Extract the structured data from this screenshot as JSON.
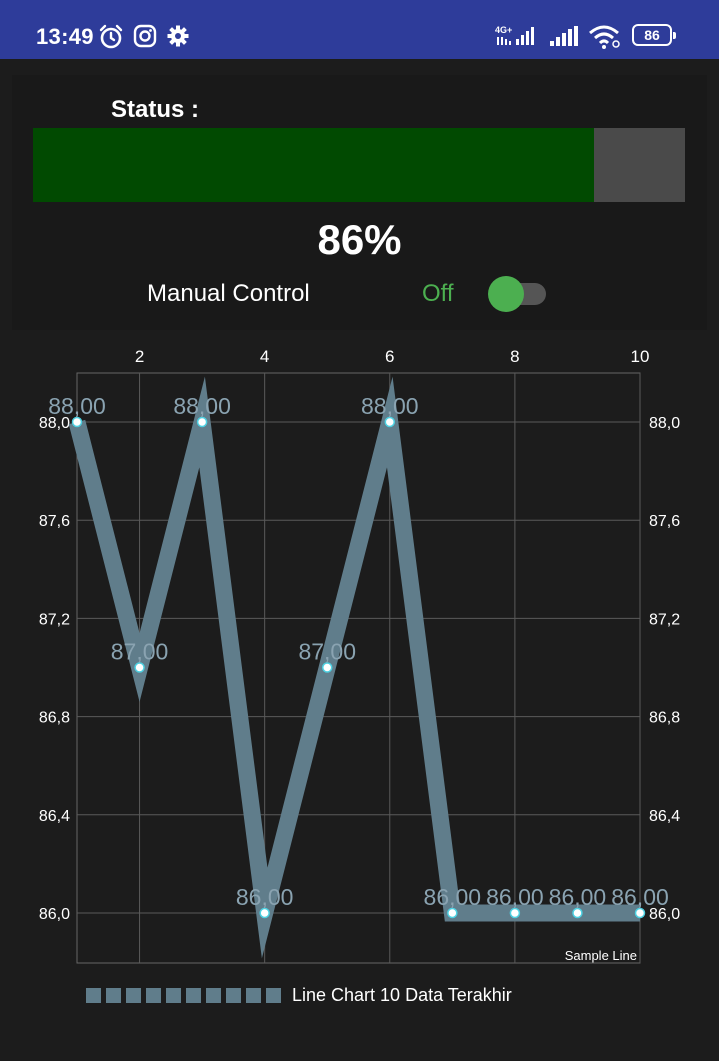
{
  "status_bar": {
    "time": "13:49",
    "battery": "86",
    "icons": [
      "alarm-icon",
      "instagram-icon",
      "gear-icon",
      "signal-4g-icon",
      "signal-icon",
      "wifi-icon",
      "battery-icon"
    ]
  },
  "status": {
    "label": "Status :",
    "progress": 86,
    "percent_text": "86%",
    "fill_color": "#014a01",
    "track_color": "#4a4a4a"
  },
  "manual_control": {
    "label": "Manual Control",
    "state": "Off",
    "checked": false,
    "accent": "#4caf50"
  },
  "chart_data": {
    "type": "line",
    "x": [
      1,
      2,
      3,
      4,
      5,
      6,
      7,
      8,
      9,
      10
    ],
    "series": [
      {
        "name": "Line Chart 10 Data Terakhir",
        "values": [
          88,
          87,
          88,
          86,
          87,
          88,
          86,
          86,
          86,
          86
        ],
        "value_labels": [
          "88,00",
          "87,00",
          "88,00",
          "86,00",
          "87,00",
          "88,00",
          "86,00",
          "86,00",
          "86,00",
          "86,00"
        ],
        "color": "#607d8b"
      }
    ],
    "x_ticks": [
      2,
      4,
      6,
      8,
      10
    ],
    "x_tick_labels": [
      "2",
      "4",
      "6",
      "8",
      "10"
    ],
    "y_ticks": [
      86.0,
      86.4,
      86.8,
      87.2,
      87.6,
      88.0
    ],
    "y_tick_labels": [
      "86,0",
      "86,4",
      "86,8",
      "87,2",
      "87,6",
      "88,0"
    ],
    "xlim": [
      1,
      10
    ],
    "ylim": [
      85.9,
      88.2
    ],
    "grid": true,
    "x_axis_position": "top",
    "y_axis": "both sides",
    "description": "Sample Line",
    "legend_position": "bottom-left"
  }
}
